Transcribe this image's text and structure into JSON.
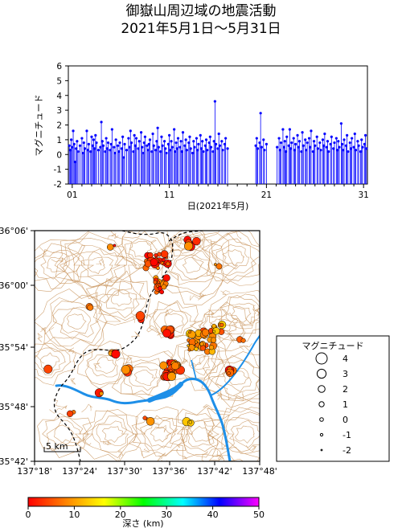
{
  "title": {
    "line1": "御嶽山周辺域の地震活動",
    "line2": "2021年5月1日〜5月31日"
  },
  "chart_data": {
    "type": "stem",
    "title": "",
    "xlabel": "日(2021年5月)",
    "ylabel": "マグニチュード",
    "xlim": [
      0.6,
      31.4
    ],
    "ylim": [
      -2,
      6
    ],
    "x_ticks": [
      "01",
      "11",
      "21",
      "31"
    ],
    "y_ticks": [
      "-2",
      "-1",
      "0",
      "1",
      "2",
      "3",
      "4",
      "5",
      "6"
    ],
    "series": [
      {
        "color": "#0000ff",
        "points": [
          [
            0.7,
            0.6
          ],
          [
            0.8,
            0.3
          ],
          [
            0.9,
            1.0
          ],
          [
            1.0,
            0.5
          ],
          [
            1.1,
            1.6
          ],
          [
            1.2,
            0.7
          ],
          [
            1.3,
            -0.5
          ],
          [
            1.4,
            0.4
          ],
          [
            1.5,
            0.9
          ],
          [
            1.6,
            0.2
          ],
          [
            1.8,
            0.6
          ],
          [
            2.0,
            1.1
          ],
          [
            2.1,
            0.1
          ],
          [
            2.2,
            0.8
          ],
          [
            2.3,
            0.4
          ],
          [
            2.5,
            1.6
          ],
          [
            2.6,
            0.3
          ],
          [
            2.7,
            0.7
          ],
          [
            2.9,
            0.2
          ],
          [
            3.0,
            1.2
          ],
          [
            3.1,
            0.6
          ],
          [
            3.2,
            1.0
          ],
          [
            3.3,
            0.4
          ],
          [
            3.4,
            1.3
          ],
          [
            3.5,
            0.8
          ],
          [
            3.7,
            0.3
          ],
          [
            3.9,
            0.5
          ],
          [
            4.0,
            2.2
          ],
          [
            4.1,
            0.9
          ],
          [
            4.2,
            0.6
          ],
          [
            4.4,
            0.2
          ],
          [
            4.5,
            1.1
          ],
          [
            4.6,
            0.4
          ],
          [
            4.7,
            0.8
          ],
          [
            4.9,
            0.3
          ],
          [
            5.0,
            0.7
          ],
          [
            5.1,
            1.7
          ],
          [
            5.3,
            0.5
          ],
          [
            5.4,
            0.1
          ],
          [
            5.5,
            1.0
          ],
          [
            5.7,
            0.6
          ],
          [
            5.8,
            0.2
          ],
          [
            5.9,
            0.8
          ],
          [
            6.1,
            0.4
          ],
          [
            6.2,
            1.2
          ],
          [
            6.3,
            -0.2
          ],
          [
            6.4,
            0.7
          ],
          [
            6.6,
            0.3
          ],
          [
            6.8,
            1.1
          ],
          [
            6.9,
            0.5
          ],
          [
            7.0,
            1.6
          ],
          [
            7.1,
            0.8
          ],
          [
            7.3,
            0.2
          ],
          [
            7.4,
            1.3
          ],
          [
            7.5,
            0.6
          ],
          [
            7.6,
            1.1
          ],
          [
            7.8,
            0.4
          ],
          [
            7.9,
            0.9
          ],
          [
            8.1,
            1.5
          ],
          [
            8.2,
            0.5
          ],
          [
            8.3,
            0.1
          ],
          [
            8.4,
            0.8
          ],
          [
            8.5,
            1.2
          ],
          [
            8.7,
            0.6
          ],
          [
            8.8,
            0.3
          ],
          [
            8.9,
            0.7
          ],
          [
            9.0,
            1.0
          ],
          [
            9.2,
            0.2
          ],
          [
            9.3,
            1.4
          ],
          [
            9.4,
            0.6
          ],
          [
            9.6,
            0.3
          ],
          [
            9.7,
            0.9
          ],
          [
            9.8,
            1.8
          ],
          [
            9.9,
            0.5
          ],
          [
            10.1,
            0.2
          ],
          [
            10.2,
            1.2
          ],
          [
            10.3,
            0.6
          ],
          [
            10.5,
            0.9
          ],
          [
            10.6,
            0.4
          ],
          [
            10.7,
            0.1
          ],
          [
            10.9,
            0.7
          ],
          [
            11.0,
            1.3
          ],
          [
            11.1,
            0.3
          ],
          [
            11.2,
            0.9
          ],
          [
            11.3,
            0.5
          ],
          [
            11.5,
            1.7
          ],
          [
            11.6,
            0.2
          ],
          [
            11.7,
            0.8
          ],
          [
            11.8,
            0.4
          ],
          [
            11.9,
            1.1
          ],
          [
            12.1,
            0.5
          ],
          [
            12.2,
            0.9
          ],
          [
            12.3,
            0.2
          ],
          [
            12.4,
            1.5
          ],
          [
            12.6,
            0.6
          ],
          [
            12.7,
            1.0
          ],
          [
            12.8,
            0.3
          ],
          [
            13.0,
            0.8
          ],
          [
            13.1,
            1.2
          ],
          [
            13.2,
            0.4
          ],
          [
            13.4,
            0.1
          ],
          [
            13.5,
            0.9
          ],
          [
            13.6,
            0.5
          ],
          [
            13.8,
            1.1
          ],
          [
            13.9,
            0.3
          ],
          [
            14.0,
            0.7
          ],
          [
            14.2,
            1.3
          ],
          [
            14.3,
            0.4
          ],
          [
            14.4,
            0.9
          ],
          [
            14.5,
            0.2
          ],
          [
            14.7,
            0.6
          ],
          [
            14.8,
            1.0
          ],
          [
            14.9,
            0.3
          ],
          [
            15.1,
            0.8
          ],
          [
            15.2,
            1.2
          ],
          [
            15.3,
            0.5
          ],
          [
            15.5,
            0.2
          ],
          [
            15.6,
            0.9
          ],
          [
            15.7,
            3.6
          ],
          [
            15.8,
            0.7
          ],
          [
            16.0,
            0.4
          ],
          [
            16.1,
            1.4
          ],
          [
            16.2,
            0.6
          ],
          [
            16.4,
            0.9
          ],
          [
            16.5,
            0.3
          ],
          [
            16.7,
            0.7
          ],
          [
            16.8,
            1.1
          ],
          [
            17.0,
            0.4
          ],
          [
            19.9,
            0.6
          ],
          [
            20.0,
            1.1
          ],
          [
            20.1,
            0.4
          ],
          [
            20.3,
            0.8
          ],
          [
            20.4,
            2.8
          ],
          [
            20.5,
            0.5
          ],
          [
            20.7,
            1.0
          ],
          [
            20.8,
            0.3
          ],
          [
            21.0,
            0.7
          ],
          [
            22.1,
            0.5
          ],
          [
            22.3,
            1.1
          ],
          [
            22.4,
            0.3
          ],
          [
            22.5,
            0.8
          ],
          [
            22.7,
            1.7
          ],
          [
            22.8,
            0.5
          ],
          [
            22.9,
            0.9
          ],
          [
            23.0,
            0.2
          ],
          [
            23.1,
            1.2
          ],
          [
            23.3,
            0.6
          ],
          [
            23.4,
            1.7
          ],
          [
            23.5,
            0.4
          ],
          [
            23.6,
            0.8
          ],
          [
            23.8,
            1.1
          ],
          [
            23.9,
            0.3
          ],
          [
            24.0,
            0.7
          ],
          [
            24.2,
            1.3
          ],
          [
            24.3,
            0.5
          ],
          [
            24.4,
            0.9
          ],
          [
            24.6,
            0.2
          ],
          [
            24.7,
            1.5
          ],
          [
            24.8,
            0.6
          ],
          [
            25.0,
            1.0
          ],
          [
            25.1,
            0.3
          ],
          [
            25.2,
            0.8
          ],
          [
            25.4,
            1.1
          ],
          [
            25.5,
            0.5
          ],
          [
            25.6,
            1.6
          ],
          [
            25.8,
            0.2
          ],
          [
            25.9,
            0.9
          ],
          [
            26.0,
            0.6
          ],
          [
            26.2,
            1.2
          ],
          [
            26.3,
            0.4
          ],
          [
            26.5,
            0.8
          ],
          [
            26.6,
            0.3
          ],
          [
            26.8,
            1.0
          ],
          [
            26.9,
            0.6
          ],
          [
            27.0,
            1.4
          ],
          [
            27.2,
            0.5
          ],
          [
            27.3,
            0.9
          ],
          [
            27.4,
            0.2
          ],
          [
            27.6,
            0.7
          ],
          [
            27.7,
            1.2
          ],
          [
            27.9,
            0.4
          ],
          [
            28.0,
            0.8
          ],
          [
            28.2,
            1.1
          ],
          [
            28.3,
            0.3
          ],
          [
            28.4,
            0.9
          ],
          [
            28.5,
            0.5
          ],
          [
            28.7,
            2.1
          ],
          [
            28.8,
            0.7
          ],
          [
            28.9,
            0.3
          ],
          [
            29.0,
            1.0
          ],
          [
            29.2,
            0.6
          ],
          [
            29.3,
            1.3
          ],
          [
            29.4,
            0.2
          ],
          [
            29.6,
            0.8
          ],
          [
            29.7,
            0.4
          ],
          [
            29.8,
            1.1
          ],
          [
            30.0,
            0.5
          ],
          [
            30.1,
            1.4
          ],
          [
            30.2,
            0.3
          ],
          [
            30.4,
            0.9
          ],
          [
            30.5,
            0.6
          ],
          [
            30.7,
            0.2
          ],
          [
            30.8,
            1.0
          ],
          [
            30.9,
            0.5
          ],
          [
            31.1,
            0.7
          ],
          [
            31.2,
            1.3
          ],
          [
            31.3,
            0.4
          ]
        ]
      }
    ]
  },
  "map": {
    "lon_ticks": [
      "137°18'",
      "137°24'",
      "137°30'",
      "137°36'",
      "137°42'",
      "137°48'"
    ],
    "lat_ticks": [
      "36°06'",
      "36°00'",
      "35°54'",
      "35°48'",
      "35°42'"
    ],
    "scale_label": "5 km",
    "colors": {
      "contour": "#c8935a",
      "river": "#1e8fe8",
      "boundary": "#000000",
      "quake_edge": "#000000"
    }
  },
  "legend": {
    "title": "マグニチュード",
    "entries": [
      "4",
      "3",
      "2",
      "1",
      "0",
      "-1",
      "-2"
    ]
  },
  "colorbar": {
    "ticks": [
      "0",
      "10",
      "20",
      "30",
      "40",
      "50"
    ],
    "label": "深さ (km)",
    "stops": [
      "#ff0000",
      "#ff8800",
      "#ffff00",
      "#00ff00",
      "#00ffff",
      "#0000ff",
      "#ff00ff"
    ]
  }
}
